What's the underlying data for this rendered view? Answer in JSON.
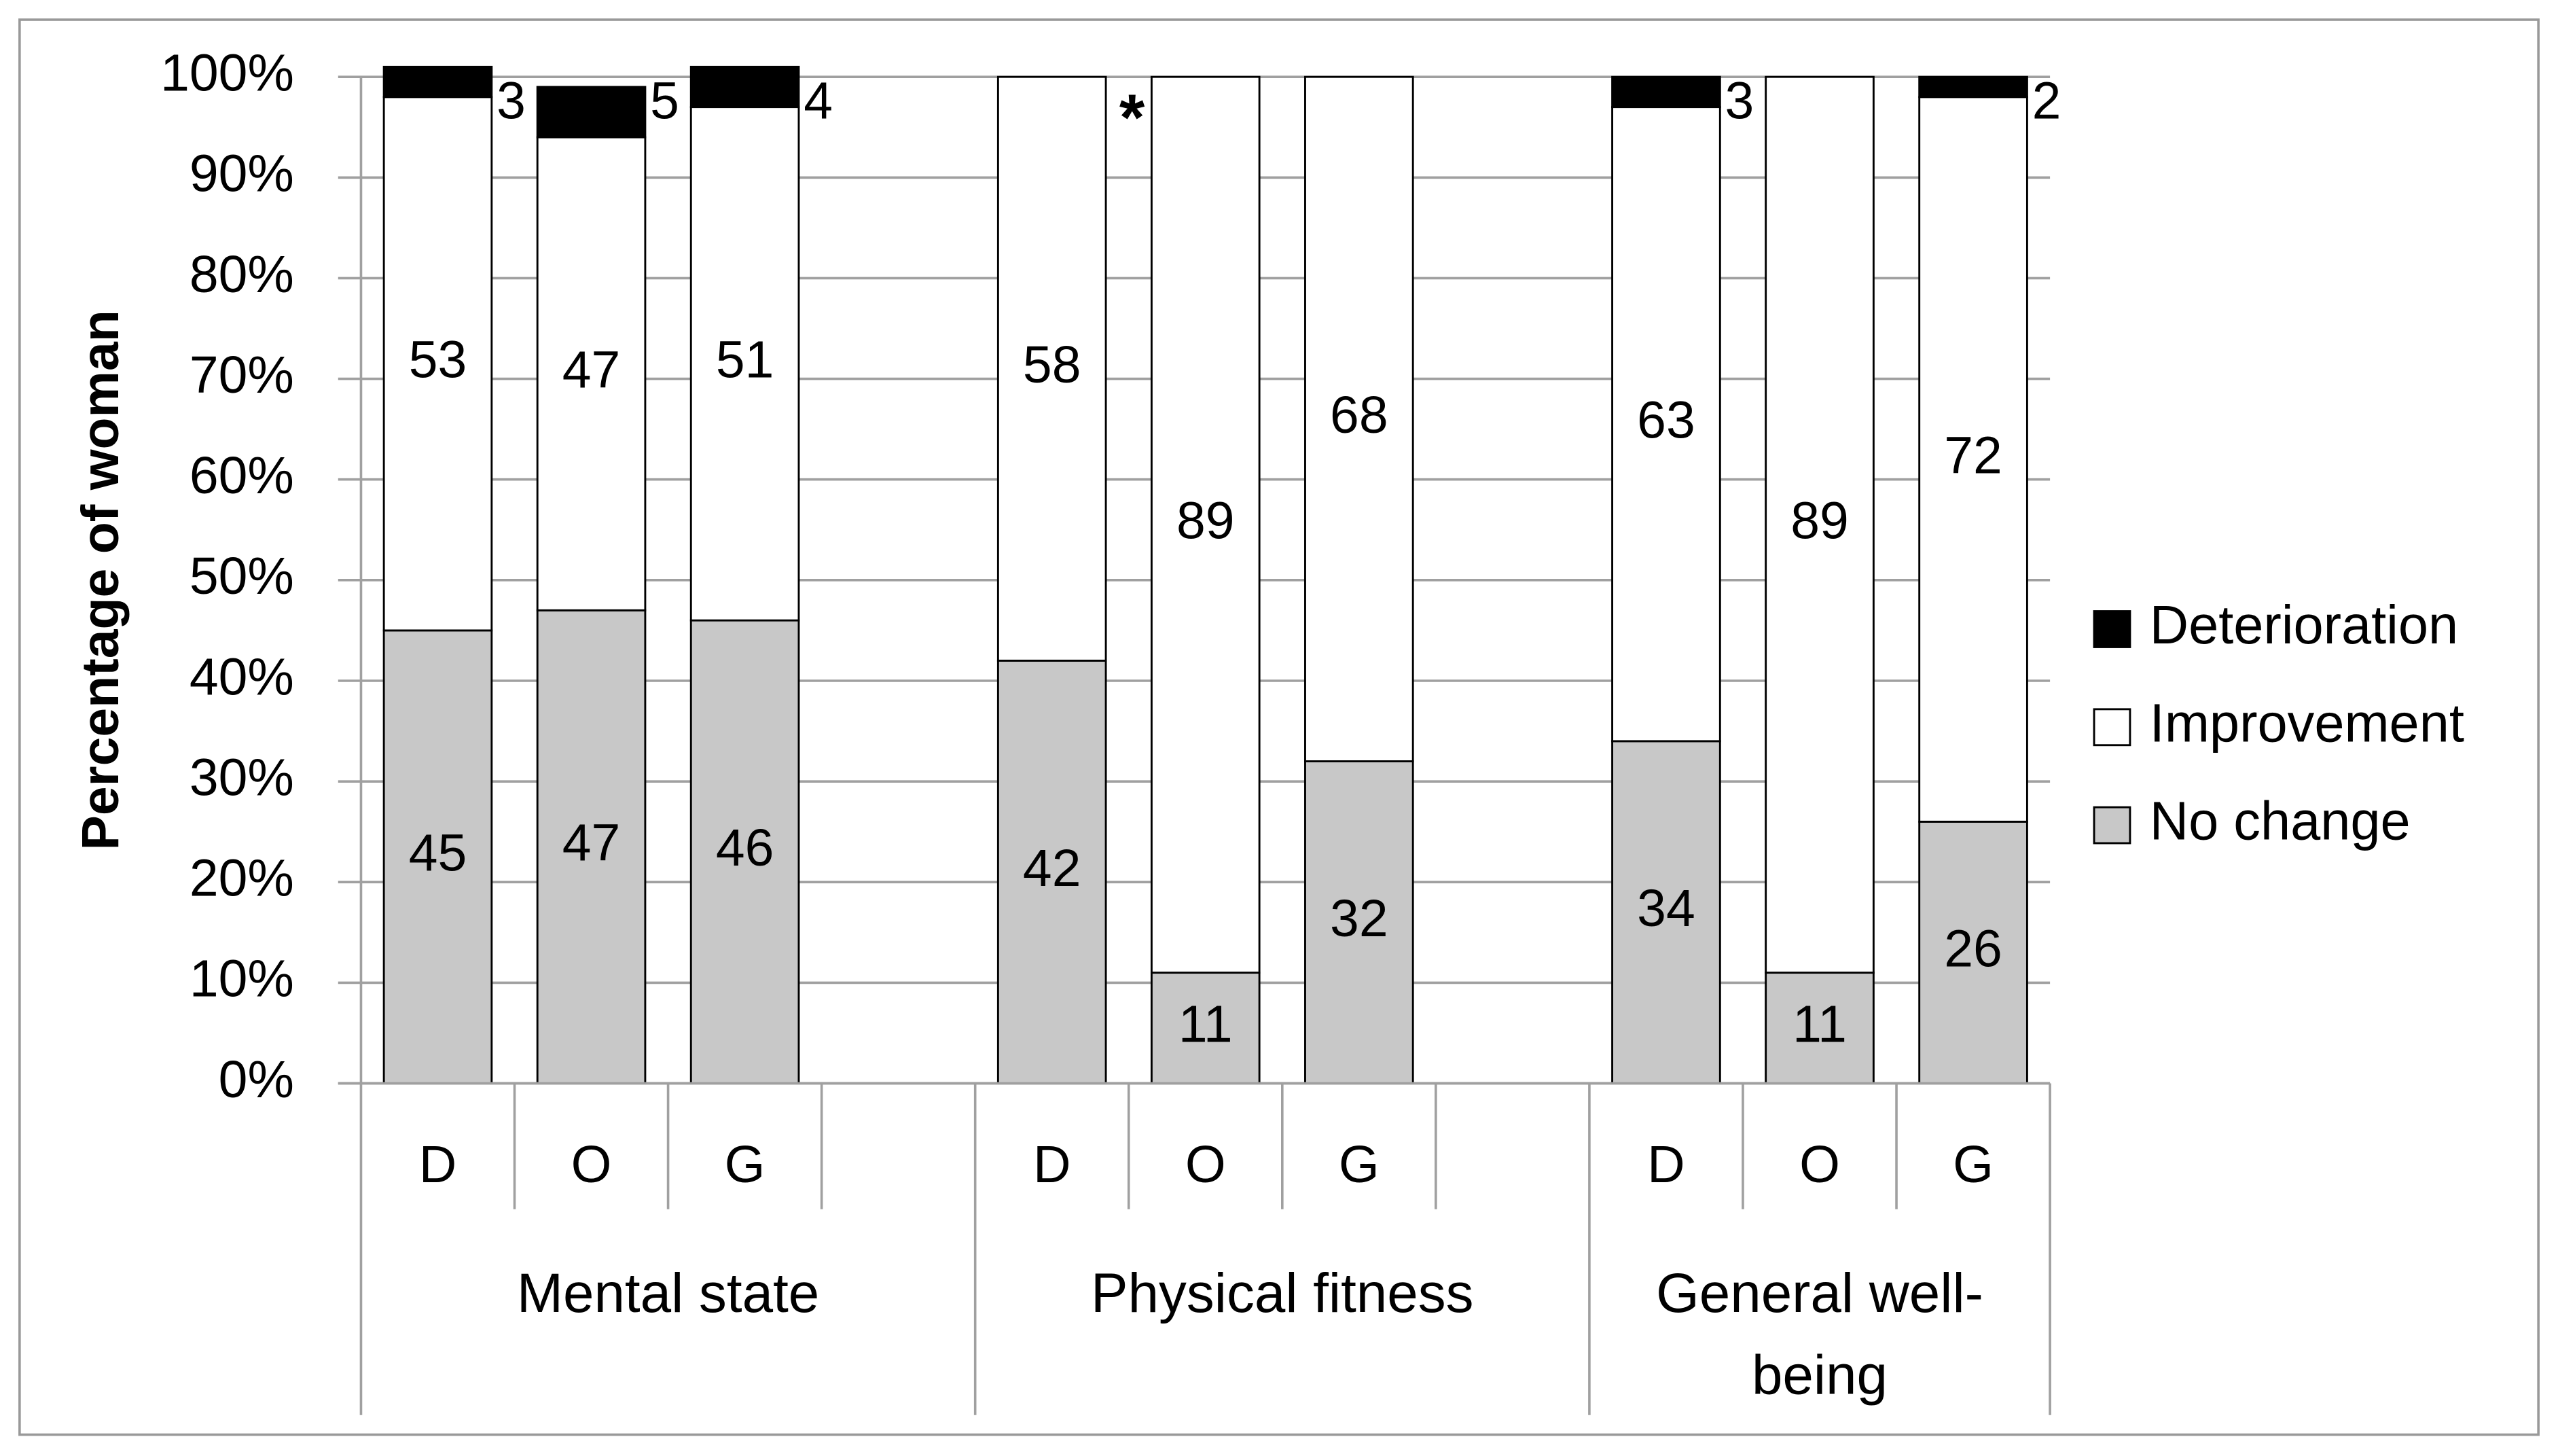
{
  "chart_data": {
    "type": "stacked-bar",
    "y_label": "Percentage of woman",
    "categories": [
      "D",
      "O",
      "G",
      null,
      "D",
      "O",
      "G",
      null,
      "D",
      "O",
      "G"
    ],
    "groups": [
      "Mental state",
      "Physical fitness",
      "General well-being"
    ],
    "annotation": "*",
    "series": [
      {
        "name": "No change",
        "color": "#c8c8c8",
        "values": [
          45,
          47,
          46,
          null,
          42,
          11,
          32,
          null,
          34,
          11,
          26
        ]
      },
      {
        "name": "Improvement",
        "color": "#ffffff",
        "values": [
          53,
          47,
          51,
          null,
          58,
          89,
          68,
          null,
          63,
          89,
          72
        ]
      },
      {
        "name": "Deterioration",
        "color": "#000000",
        "values": [
          3,
          5,
          4,
          null,
          0,
          0,
          0,
          null,
          3,
          0,
          2
        ]
      }
    ],
    "ylim": [
      0,
      100
    ],
    "yticks": [
      {
        "value": 0,
        "label": "0%"
      },
      {
        "value": 10,
        "label": "10%"
      },
      {
        "value": 20,
        "label": "20%"
      },
      {
        "value": 30,
        "label": "30%"
      },
      {
        "value": 40,
        "label": "40%"
      },
      {
        "value": 50,
        "label": "50%"
      },
      {
        "value": 60,
        "label": "60%"
      },
      {
        "value": 70,
        "label": "70%"
      },
      {
        "value": 80,
        "label": "80%"
      },
      {
        "value": 90,
        "label": "90%"
      },
      {
        "value": 100,
        "label": "100%"
      }
    ],
    "grid": true,
    "legend": "right"
  }
}
